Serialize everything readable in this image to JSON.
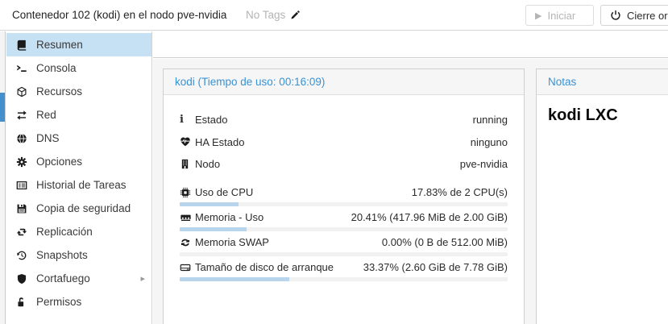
{
  "header": {
    "title": "Contenedor 102 (kodi) en el nodo pve-nvidia",
    "tags_label": "No Tags",
    "buttons": {
      "start": "Iniciar",
      "shutdown": "Cierre ordenado"
    }
  },
  "sidebar": {
    "items": [
      {
        "label": "Resumen",
        "icon": "book-icon",
        "selected": true
      },
      {
        "label": "Consola",
        "icon": "terminal-icon",
        "selected": false
      },
      {
        "label": "Recursos",
        "icon": "cube-icon",
        "selected": false
      },
      {
        "label": "Red",
        "icon": "exchange-icon",
        "selected": false
      },
      {
        "label": "DNS",
        "icon": "globe-icon",
        "selected": false
      },
      {
        "label": "Opciones",
        "icon": "gear-icon",
        "selected": false
      },
      {
        "label": "Historial de Tareas",
        "icon": "list-icon",
        "selected": false
      },
      {
        "label": "Copia de seguridad",
        "icon": "floppy-icon",
        "selected": false
      },
      {
        "label": "Replicación",
        "icon": "retweet-icon",
        "selected": false
      },
      {
        "label": "Snapshots",
        "icon": "history-icon",
        "selected": false
      },
      {
        "label": "Cortafuego",
        "icon": "shield-icon",
        "selected": false,
        "has_submenu": true
      },
      {
        "label": "Permisos",
        "icon": "unlock-icon",
        "selected": false
      }
    ]
  },
  "status_panel": {
    "title": "kodi (Tiempo de uso: 00:16:09)",
    "rows": [
      {
        "label": "Estado",
        "value": "running",
        "icon": "info-icon"
      },
      {
        "label": "HA Estado",
        "value": "ninguno",
        "icon": "heartbeat-icon"
      },
      {
        "label": "Nodo",
        "value": "pve-nvidia",
        "icon": "building-icon"
      },
      {
        "label": "Uso de CPU",
        "value": "17.83% de 2 CPU(s)",
        "icon": "cpu-icon",
        "percent": 17.83
      },
      {
        "label": "Memoria - Uso",
        "value": "20.41% (417.96 MiB de 2.00 GiB)",
        "icon": "memory-icon",
        "percent": 20.41
      },
      {
        "label": "Memoria SWAP",
        "value": "0.00% (0 B de 512.00 MiB)",
        "icon": "swap-icon",
        "percent": 0
      },
      {
        "label": "Tamaño de disco de arranque",
        "value": "33.37% (2.60 GiB de 7.78 GiB)",
        "icon": "disk-icon",
        "percent": 33.37
      }
    ]
  },
  "notes_panel": {
    "title": "Notas",
    "content": "kodi LXC"
  },
  "colors": {
    "accent": "#3892d4",
    "sidebar_selected_bg": "#c6e0f4",
    "bar_fill": "#b7d6ee",
    "bar_track": "#f1f1f1",
    "tree_thumb": "#4490cf",
    "muted_text": "#b4b4b4"
  }
}
